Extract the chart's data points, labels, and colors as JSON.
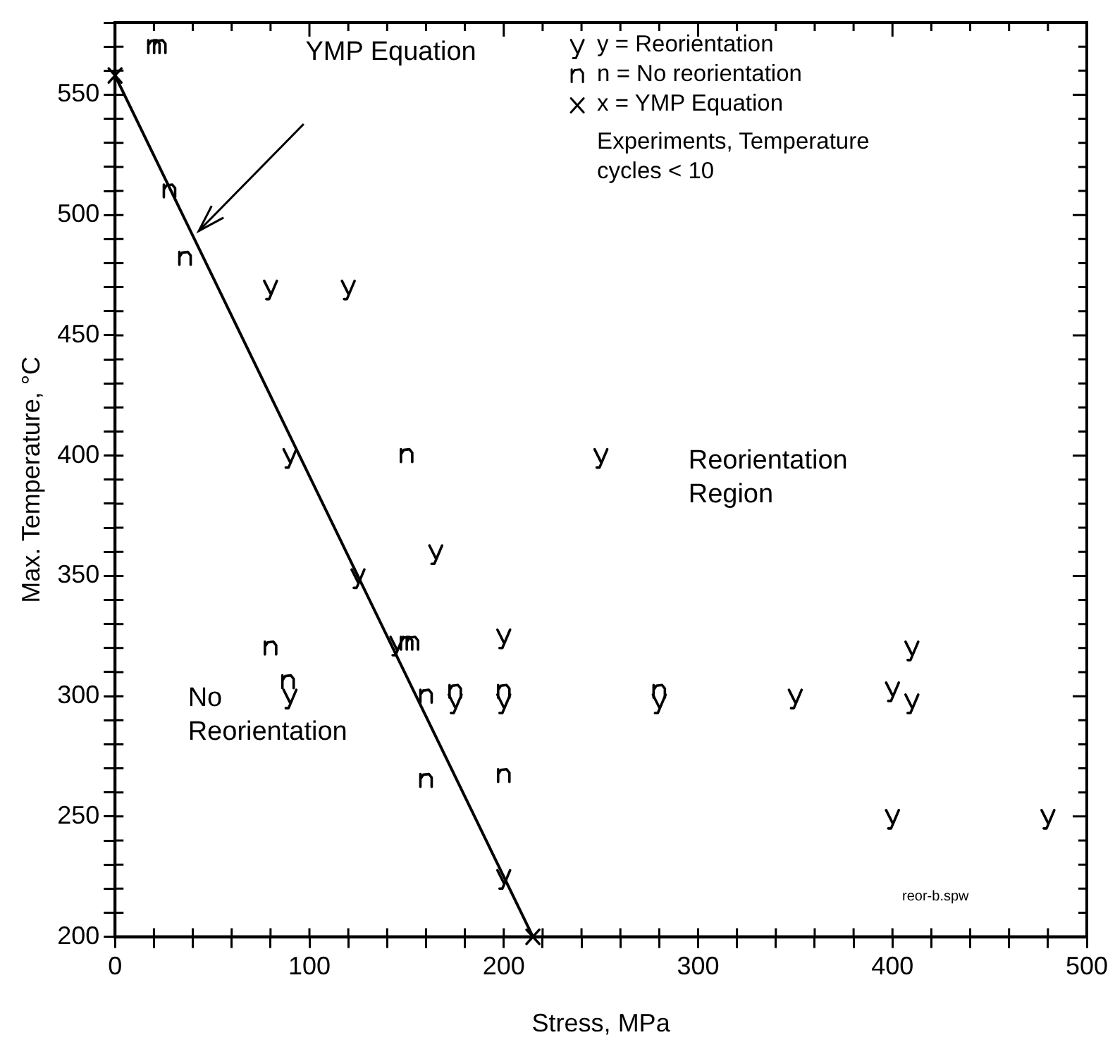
{
  "chart_data": {
    "type": "scatter",
    "xlabel": "Stress, MPa",
    "ylabel": "Max. Temperature, °C",
    "xlim": [
      0,
      500
    ],
    "ylim": [
      200,
      580
    ],
    "xticks": [
      0,
      {
        "value": 20,
        "label": null
      },
      {
        "value": 40,
        "label": null
      },
      {
        "value": 60,
        "label": null
      },
      {
        "value": 80,
        "label": null
      },
      100,
      {
        "value": 120,
        "label": null
      },
      {
        "value": 140,
        "label": null
      },
      {
        "value": 160,
        "label": null
      },
      {
        "value": 180,
        "label": null
      },
      200,
      {
        "value": 220,
        "label": null
      },
      {
        "value": 240,
        "label": null
      },
      {
        "value": 260,
        "label": null
      },
      {
        "value": 280,
        "label": null
      },
      300,
      {
        "value": 320,
        "label": null
      },
      {
        "value": 340,
        "label": null
      },
      {
        "value": 360,
        "label": null
      },
      {
        "value": 380,
        "label": null
      },
      400,
      {
        "value": 420,
        "label": null
      },
      {
        "value": 440,
        "label": null
      },
      {
        "value": 460,
        "label": null
      },
      {
        "value": 480,
        "label": null
      },
      500
    ],
    "yticks": [
      200,
      {
        "value": 210,
        "label": null
      },
      {
        "value": 220,
        "label": null
      },
      {
        "value": 230,
        "label": null
      },
      {
        "value": 240,
        "label": null
      },
      250,
      {
        "value": 260,
        "label": null
      },
      {
        "value": 270,
        "label": null
      },
      {
        "value": 280,
        "label": null
      },
      {
        "value": 290,
        "label": null
      },
      300,
      {
        "value": 310,
        "label": null
      },
      {
        "value": 320,
        "label": null
      },
      {
        "value": 330,
        "label": null
      },
      {
        "value": 340,
        "label": null
      },
      350,
      {
        "value": 360,
        "label": null
      },
      {
        "value": 370,
        "label": null
      },
      {
        "value": 380,
        "label": null
      },
      {
        "value": 390,
        "label": null
      },
      400,
      {
        "value": 410,
        "label": null
      },
      {
        "value": 420,
        "label": null
      },
      {
        "value": 430,
        "label": null
      },
      {
        "value": 440,
        "label": null
      },
      450,
      {
        "value": 460,
        "label": null
      },
      {
        "value": 470,
        "label": null
      },
      {
        "value": 480,
        "label": null
      },
      {
        "value": 490,
        "label": null
      },
      500,
      {
        "value": 510,
        "label": null
      },
      {
        "value": 520,
        "label": null
      },
      {
        "value": 530,
        "label": null
      },
      {
        "value": 540,
        "label": null
      },
      550,
      {
        "value": 560,
        "label": null
      },
      {
        "value": 570,
        "label": null
      },
      {
        "value": 580,
        "label": null
      }
    ],
    "grid": false,
    "legend": "top right",
    "series": [
      {
        "name": "y = Reorientation",
        "color": "#000000",
        "x": [
          80,
          120,
          90,
          250,
          165,
          125,
          145,
          200,
          90,
          175,
          200,
          280,
          350,
          400,
          410,
          410,
          200,
          400,
          480
        ],
        "values": [
          470,
          470,
          400,
          400,
          360,
          350,
          322,
          325,
          300,
          298,
          298,
          298,
          300,
          303,
          298,
          320,
          225,
          250,
          250
        ]
      },
      {
        "name": "n = No reorientation",
        "color": "#000000",
        "x": [
          20,
          23,
          28,
          36,
          150,
          150,
          153,
          80,
          89,
          160,
          175,
          200,
          280,
          160,
          200
        ],
        "values": [
          570,
          570,
          510,
          482,
          400,
          322,
          322,
          320,
          306,
          300,
          302,
          302,
          302,
          265,
          267
        ]
      },
      {
        "name": "x = YMP Equation",
        "type": "line",
        "color": "#000000",
        "marker": "cross",
        "x": [
          0,
          215
        ],
        "values": [
          558,
          200
        ]
      }
    ],
    "annotations": [
      "YMP Equation",
      "Experiments, Temperature\ncycles < 10",
      "Reorientation\nRegion",
      "No\nReorientation",
      "reor-b.spw"
    ]
  }
}
